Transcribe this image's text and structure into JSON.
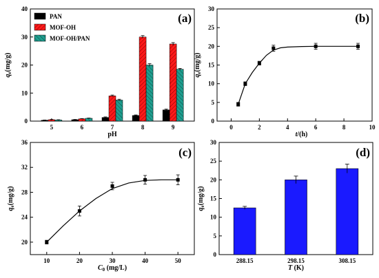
{
  "colors": {
    "pan": "#000000",
    "mof_oh": "#ff1a1a",
    "mof_oh_pan": "#1f9e8f",
    "bar_d": "#1a1aff",
    "line": "#000000"
  },
  "chart_data": [
    {
      "type": "bar",
      "panel_tag": "(a)",
      "xlabel": "pH",
      "ylabel": "q",
      "ylabel_sub": "e",
      "ylabel_unit": "(mg/g)",
      "categories": [
        "5",
        "6",
        "7",
        "8",
        "9"
      ],
      "ylim": [
        0,
        40
      ],
      "yticks": [
        "0",
        "10",
        "20",
        "30",
        "40"
      ],
      "legend_position": "top-left",
      "series": [
        {
          "name": "PAN",
          "values": [
            0.3,
            0.5,
            1.3,
            2.0,
            4.0
          ],
          "errors": [
            0.1,
            0.1,
            0.2,
            0.2,
            0.3
          ]
        },
        {
          "name": "MOF-OH",
          "values": [
            0.5,
            0.8,
            9.0,
            30.0,
            27.5
          ],
          "errors": [
            0.1,
            0.1,
            0.3,
            0.5,
            0.5
          ]
        },
        {
          "name": "MOF-OH/PAN",
          "values": [
            0.4,
            1.0,
            7.5,
            20.0,
            18.5
          ],
          "errors": [
            0.1,
            0.1,
            0.3,
            0.5,
            0.3
          ]
        }
      ]
    },
    {
      "type": "scatter",
      "panel_tag": "(b)",
      "xlabel": "t",
      "xlabel_unit": "/(h)",
      "ylabel": "q",
      "ylabel_sub": "e",
      "ylabel_unit": "(mg/g)",
      "xlim": [
        -1,
        10
      ],
      "ylim": [
        0,
        30
      ],
      "xticks": [
        0,
        2,
        4,
        6,
        8,
        10
      ],
      "yticks": [
        0,
        5,
        10,
        15,
        20,
        25,
        30
      ],
      "points": [
        {
          "x": 0.5,
          "y": 4.5,
          "err": 0.5
        },
        {
          "x": 1.0,
          "y": 10.0,
          "err": 0.5
        },
        {
          "x": 2.0,
          "y": 15.5,
          "err": 0.5
        },
        {
          "x": 3.0,
          "y": 19.5,
          "err": 0.8
        },
        {
          "x": 6.0,
          "y": 20.0,
          "err": 0.8
        },
        {
          "x": 9.0,
          "y": 20.0,
          "err": 0.8
        }
      ],
      "fit": [
        [
          0.5,
          4.5
        ],
        [
          1.0,
          10.0
        ],
        [
          1.5,
          13.0
        ],
        [
          2.0,
          15.5
        ],
        [
          2.5,
          17.6
        ],
        [
          3.0,
          19.0
        ],
        [
          3.5,
          19.6
        ],
        [
          4.0,
          19.8
        ],
        [
          5.0,
          19.95
        ],
        [
          6.0,
          20.0
        ],
        [
          9.0,
          20.0
        ]
      ]
    },
    {
      "type": "scatter",
      "panel_tag": "(c)",
      "xlabel": "C",
      "xlabel_sub": "0",
      "xlabel_unit": " (mg/L)",
      "ylabel": "q",
      "ylabel_sub": "e",
      "ylabel_unit": "(mg/g)",
      "xlim": [
        5,
        55
      ],
      "ylim": [
        18,
        36
      ],
      "xticks": [
        10,
        20,
        30,
        40,
        50
      ],
      "yticks": [
        20,
        24,
        28,
        32,
        36
      ],
      "points": [
        {
          "x": 10,
          "y": 20.0,
          "err": 0.3
        },
        {
          "x": 20,
          "y": 25.0,
          "err": 0.8
        },
        {
          "x": 30,
          "y": 29.0,
          "err": 0.6
        },
        {
          "x": 40,
          "y": 30.0,
          "err": 0.7
        },
        {
          "x": 50,
          "y": 30.0,
          "err": 0.8
        }
      ],
      "fit": [
        [
          10,
          20.0
        ],
        [
          15,
          22.6
        ],
        [
          20,
          25.0
        ],
        [
          25,
          27.0
        ],
        [
          30,
          28.6
        ],
        [
          35,
          29.5
        ],
        [
          40,
          29.9
        ],
        [
          45,
          30.0
        ],
        [
          50,
          30.0
        ]
      ]
    },
    {
      "type": "bar",
      "panel_tag": "(d)",
      "xlabel": "T",
      "xlabel_unit": " (K)",
      "ylabel": "q",
      "ylabel_sub": "e",
      "ylabel_unit": "(mg/g)",
      "categories": [
        "288.15",
        "298.15",
        "308.15"
      ],
      "ylim": [
        0,
        30
      ],
      "yticks": [
        "0",
        "5",
        "10",
        "15",
        "20",
        "25",
        "30"
      ],
      "series": [
        {
          "values": [
            12.5,
            20.0,
            23.0
          ],
          "errors": [
            0.4,
            1.0,
            1.2
          ]
        }
      ]
    }
  ]
}
